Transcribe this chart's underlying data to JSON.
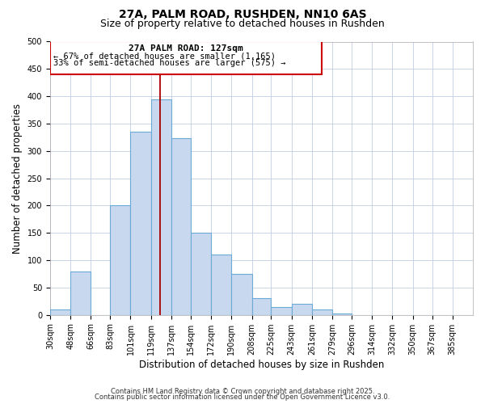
{
  "title": "27A, PALM ROAD, RUSHDEN, NN10 6AS",
  "subtitle": "Size of property relative to detached houses in Rushden",
  "xlabel": "Distribution of detached houses by size in Rushden",
  "ylabel": "Number of detached properties",
  "bin_labels": [
    "30sqm",
    "48sqm",
    "66sqm",
    "83sqm",
    "101sqm",
    "119sqm",
    "137sqm",
    "154sqm",
    "172sqm",
    "190sqm",
    "208sqm",
    "225sqm",
    "243sqm",
    "261sqm",
    "279sqm",
    "296sqm",
    "314sqm",
    "332sqm",
    "350sqm",
    "367sqm",
    "385sqm"
  ],
  "bar_heights": [
    10,
    79,
    0,
    200,
    335,
    395,
    323,
    150,
    110,
    75,
    30,
    15,
    20,
    10,
    3,
    0,
    0,
    0,
    0,
    0,
    0
  ],
  "bar_color": "#c8d8ee",
  "bar_edge_color": "#6aaad4",
  "vline_x": 127,
  "vline_color": "#aa0000",
  "annotation_title": "27A PALM ROAD: 127sqm",
  "annotation_line1": "← 67% of detached houses are smaller (1,165)",
  "annotation_line2": "33% of semi-detached houses are larger (575) →",
  "annotation_box_color": "#cc0000",
  "ylim": [
    0,
    500
  ],
  "yticks": [
    0,
    50,
    100,
    150,
    200,
    250,
    300,
    350,
    400,
    450,
    500
  ],
  "footer_line1": "Contains HM Land Registry data © Crown copyright and database right 2025.",
  "footer_line2": "Contains public sector information licensed under the Open Government Licence v3.0.",
  "bg_color": "#ffffff",
  "grid_color": "#c0cfe0",
  "title_fontsize": 10,
  "subtitle_fontsize": 9,
  "axis_label_fontsize": 8.5,
  "tick_fontsize": 7,
  "footer_fontsize": 6,
  "annotation_title_fontsize": 8,
  "annotation_text_fontsize": 7.5
}
